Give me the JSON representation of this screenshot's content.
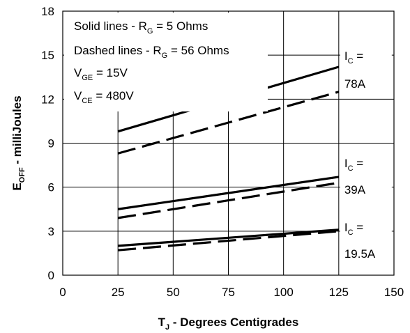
{
  "chart_data": {
    "type": "line",
    "xlabel": {
      "main": "T",
      "sub": "J",
      "rest": " - Degrees Centigrades"
    },
    "ylabel": {
      "main": "E",
      "sub": "OFF",
      "rest": " - milliJoules"
    },
    "xlim": [
      0,
      150
    ],
    "ylim": [
      0,
      18
    ],
    "x_ticks": [
      0,
      25,
      50,
      75,
      100,
      125,
      150
    ],
    "y_ticks": [
      0,
      3,
      6,
      9,
      12,
      15,
      18
    ],
    "x_tick_labels": [
      "0",
      "25",
      "50",
      "75",
      "100",
      "125",
      "150"
    ],
    "y_tick_labels": [
      "0",
      "3",
      "6",
      "9",
      "12",
      "15",
      "18"
    ],
    "grid": true,
    "annotations": {
      "line1": "Solid lines - R",
      "line1_sub": "G",
      "line1_rest": " = 5 Ohms",
      "line2": "Dashed lines - R",
      "line2_sub": "G",
      "line2_rest": " = 56 Ohms",
      "line3": "V",
      "line3_sub": "GE",
      "line3_rest": " = 15V",
      "line4": "V",
      "line4_sub": "CE",
      "line4_rest": " = 480V"
    },
    "current_labels": [
      {
        "prefix": "I",
        "sub": "C",
        "suffix": " =",
        "value": "78A",
        "x": 125,
        "y": 14.2
      },
      {
        "prefix": "I",
        "sub": "C",
        "suffix": " =",
        "value": "39A",
        "x": 125,
        "y": 6.6
      },
      {
        "prefix": "I",
        "sub": "C",
        "suffix": " =",
        "value": "19.5A",
        "x": 125,
        "y": 3.1
      }
    ],
    "series": [
      {
        "style": "solid",
        "x": [
          25,
          125
        ],
        "y": [
          9.8,
          14.2
        ]
      },
      {
        "style": "dashed",
        "x": [
          25,
          125
        ],
        "y": [
          8.3,
          12.5
        ]
      },
      {
        "style": "solid",
        "x": [
          25,
          125
        ],
        "y": [
          4.5,
          6.7
        ]
      },
      {
        "style": "dashed",
        "x": [
          25,
          125
        ],
        "y": [
          3.9,
          6.3
        ]
      },
      {
        "style": "solid",
        "x": [
          25,
          125
        ],
        "y": [
          2.0,
          3.1
        ]
      },
      {
        "style": "dashed",
        "x": [
          25,
          125
        ],
        "y": [
          1.7,
          3.0
        ]
      }
    ]
  }
}
